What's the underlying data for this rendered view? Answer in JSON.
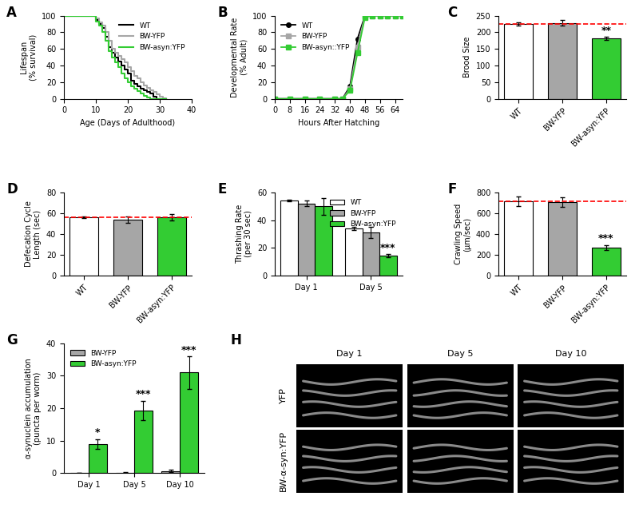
{
  "chart_data": [
    {
      "panel": "A",
      "type": "line",
      "line_style": "steps",
      "x_label": "Age (Days of Adulthood)",
      "y_label": "Lifespan\n(% survival)",
      "x": [
        0,
        8,
        10,
        11,
        12,
        13,
        14,
        15,
        16,
        17,
        18,
        19,
        20,
        21,
        22,
        23,
        24,
        25,
        26,
        27,
        28,
        29,
        30,
        31,
        32
      ],
      "series": [
        {
          "name": "WT",
          "color": "#000000",
          "values": [
            100,
            100,
            95,
            90,
            85,
            75,
            62,
            55,
            50,
            45,
            40,
            35,
            30,
            22,
            18,
            15,
            12,
            10,
            8,
            6,
            3,
            0,
            0,
            0,
            0
          ]
        },
        {
          "name": "BW-YFP",
          "color": "#a6a6a6",
          "values": [
            100,
            100,
            97,
            92,
            88,
            80,
            70,
            60,
            55,
            52,
            48,
            44,
            38,
            33,
            28,
            25,
            20,
            16,
            13,
            10,
            8,
            5,
            3,
            1,
            0
          ]
        },
        {
          "name": "BW-asyn:YFP",
          "color": "#33cc33",
          "values": [
            100,
            100,
            93,
            88,
            80,
            70,
            57,
            50,
            44,
            38,
            30,
            25,
            20,
            15,
            12,
            9,
            6,
            4,
            2,
            0,
            0,
            0,
            0,
            0,
            0
          ]
        }
      ],
      "xlim": [
        0,
        40
      ],
      "xticks": [
        0,
        10,
        20,
        30,
        40
      ],
      "ylim": [
        0,
        100
      ],
      "yticks": [
        0,
        20,
        40,
        60,
        80,
        100
      ],
      "legend": "upper right"
    },
    {
      "panel": "B",
      "type": "line",
      "line_style": "solid",
      "x_label": "Hours After Hatching",
      "y_label": "Developmental Rate\n(% Adult)",
      "x": [
        0,
        8,
        16,
        24,
        32,
        36,
        40,
        44,
        48,
        52,
        56,
        60,
        64,
        68
      ],
      "series": [
        {
          "name": "WT",
          "color": "#000000",
          "marker": "o",
          "values": [
            0,
            0,
            0,
            0,
            0,
            0,
            15,
            72,
            100,
            100,
            100,
            100,
            100,
            100
          ]
        },
        {
          "name": "BW-YFP",
          "color": "#a6a6a6",
          "marker": "s",
          "values": [
            0,
            0,
            0,
            0,
            0,
            0,
            12,
            62,
            100,
            100,
            100,
            100,
            100,
            100
          ]
        },
        {
          "name": "BW-asyn::YFP",
          "color": "#33cc33",
          "marker": "s",
          "values": [
            0,
            0,
            0,
            0,
            0,
            0,
            10,
            55,
            98,
            100,
            100,
            100,
            100,
            100
          ]
        }
      ],
      "xlim": [
        0,
        68
      ],
      "xticks": [
        0,
        8,
        16,
        24,
        32,
        40,
        48,
        56,
        64
      ],
      "ylim": [
        0,
        100
      ],
      "yticks": [
        0,
        20,
        40,
        60,
        80,
        100
      ],
      "legend": "upper left"
    },
    {
      "panel": "C",
      "type": "bar",
      "y_label": "Brood Size",
      "categories": [
        "WT",
        "BW-YFP",
        "BW-asyn:YFP"
      ],
      "values": [
        225,
        228,
        182
      ],
      "errors": [
        5,
        8,
        4
      ],
      "colors": [
        "#ffffff",
        "#a6a6a6",
        "#33cc33"
      ],
      "reference_line": {
        "value": 225,
        "color": "#ff0000",
        "line_style": "dashed"
      },
      "annotations": [
        {
          "text": "**",
          "category": "BW-asyn:YFP"
        }
      ],
      "ylim": [
        0,
        250
      ],
      "yticks": [
        0,
        50,
        100,
        150,
        200,
        250
      ]
    },
    {
      "panel": "D",
      "type": "bar",
      "y_label": "Defecation Cycle\nLength (sec)",
      "categories": [
        "WT",
        "BW-YFP",
        "BW-asyn:YFP"
      ],
      "values": [
        56,
        54,
        56
      ],
      "errors": [
        1,
        3,
        3
      ],
      "colors": [
        "#ffffff",
        "#a6a6a6",
        "#33cc33"
      ],
      "reference_line": {
        "value": 56,
        "color": "#ff0000",
        "line_style": "dashed"
      },
      "ylim": [
        0,
        80
      ],
      "yticks": [
        0,
        20,
        40,
        60,
        80
      ]
    },
    {
      "panel": "E",
      "type": "bar",
      "y_label": "Thrashing Rate\n(per 30 sec)",
      "categories": [
        "Day 1",
        "Day 5"
      ],
      "series": [
        {
          "name": "WT",
          "color": "#ffffff",
          "values": [
            54,
            34
          ],
          "errors": [
            0.5,
            1
          ]
        },
        {
          "name": "BW-YFP",
          "color": "#a6a6a6",
          "values": [
            52,
            31
          ],
          "errors": [
            2,
            4
          ]
        },
        {
          "name": "BW-asyn:YFP",
          "color": "#33cc33",
          "values": [
            50,
            14.5
          ],
          "errors": [
            6,
            1
          ]
        }
      ],
      "annotations": [
        {
          "text": "***",
          "series": "BW-asyn:YFP",
          "category": "Day 5"
        }
      ],
      "ylim": [
        0,
        60
      ],
      "yticks": [
        0,
        20,
        40,
        60
      ],
      "legend": "upper right"
    },
    {
      "panel": "F",
      "type": "bar",
      "y_label": "Crawling Speed\n(µm/sec)",
      "categories": [
        "WT",
        "BW-YFP",
        "BW-asyn:YFP"
      ],
      "values": [
        715,
        705,
        270
      ],
      "errors": [
        45,
        45,
        25
      ],
      "colors": [
        "#ffffff",
        "#a6a6a6",
        "#33cc33"
      ],
      "reference_line": {
        "value": 715,
        "color": "#ff0000",
        "line_style": "dashed"
      },
      "annotations": [
        {
          "text": "***",
          "category": "BW-asyn:YFP"
        }
      ],
      "ylim": [
        0,
        800
      ],
      "yticks": [
        0,
        200,
        400,
        600,
        800
      ]
    },
    {
      "panel": "G",
      "type": "bar",
      "y_label": "α-synuclein accumulation\n(puncta per worm)",
      "categories": [
        "Day 1",
        "Day 5",
        "Day 10"
      ],
      "series": [
        {
          "name": "BW-YFP",
          "color": "#a6a6a6",
          "values": [
            0,
            0.2,
            0.7
          ],
          "errors": [
            0,
            0.1,
            0.3
          ]
        },
        {
          "name": "BW-asyn:YFP",
          "color": "#33cc33",
          "values": [
            9,
            19.3,
            31
          ],
          "errors": [
            1.5,
            3,
            5
          ]
        }
      ],
      "annotations": [
        {
          "text": "*",
          "series": "BW-asyn:YFP",
          "category": "Day 1"
        },
        {
          "text": "***",
          "series": "BW-asyn:YFP",
          "category": "Day 5"
        },
        {
          "text": "***",
          "series": "BW-asyn:YFP",
          "category": "Day 10"
        }
      ],
      "ylim": [
        0,
        40
      ],
      "yticks": [
        0,
        10,
        20,
        30,
        40
      ],
      "legend": "upper left"
    },
    {
      "panel": "H",
      "type": "image",
      "columns": [
        "Day 1",
        "Day 5",
        "Day 10"
      ],
      "rows": [
        "YFP",
        "BW-α-syn:YFP"
      ]
    }
  ]
}
